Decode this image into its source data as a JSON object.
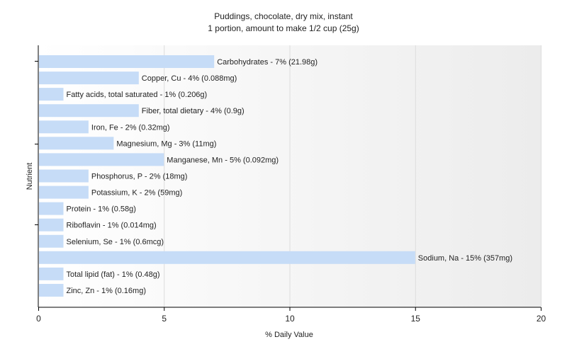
{
  "chart_data": {
    "type": "bar",
    "orientation": "horizontal",
    "title": "Puddings, chocolate, dry mix, instant",
    "subtitle": "1 portion, amount to make 1/2 cup (25g)",
    "xlabel": "% Daily Value",
    "ylabel": "Nutrient",
    "xlim": [
      0,
      20
    ],
    "xticks": [
      0,
      5,
      10,
      15,
      20
    ],
    "grid": true,
    "categories": [
      "Carbohydrates",
      "Copper, Cu",
      "Fatty acids, total saturated",
      "Fiber, total dietary",
      "Iron, Fe",
      "Magnesium, Mg",
      "Manganese, Mn",
      "Phosphorus, P",
      "Potassium, K",
      "Protein",
      "Riboflavin",
      "Selenium, Se",
      "Sodium, Na",
      "Total lipid (fat)",
      "Zinc, Zn"
    ],
    "values": [
      7,
      4,
      1,
      4,
      2,
      3,
      5,
      2,
      2,
      1,
      1,
      1,
      15,
      1,
      1
    ],
    "labels": [
      "Carbohydrates - 7% (21.98g)",
      "Copper, Cu - 4% (0.088mg)",
      "Fatty acids, total saturated - 1% (0.206g)",
      "Fiber, total dietary - 4% (0.9g)",
      "Iron, Fe - 2% (0.32mg)",
      "Magnesium, Mg - 3% (11mg)",
      "Manganese, Mn - 5% (0.092mg)",
      "Phosphorus, P - 2% (18mg)",
      "Potassium, K - 2% (59mg)",
      "Protein - 1% (0.58g)",
      "Riboflavin - 1% (0.014mg)",
      "Selenium, Se - 1% (0.6mcg)",
      "Sodium, Na - 15% (357mg)",
      "Total lipid (fat) - 1% (0.48g)",
      "Zinc, Zn - 1% (0.16mg)"
    ],
    "bar_color": "#c6dcf7",
    "grid_color": "#dddddd",
    "axis_color": "#000000"
  }
}
